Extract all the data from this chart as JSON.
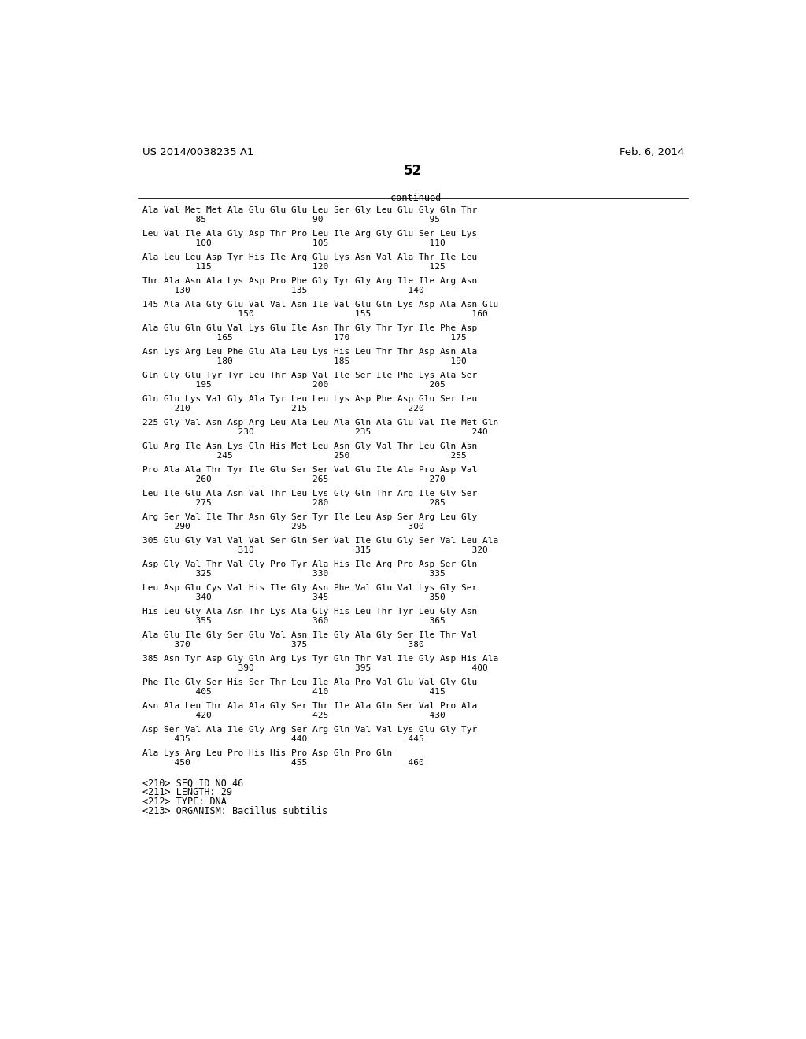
{
  "header_left": "US 2014/0038235 A1",
  "header_right": "Feb. 6, 2014",
  "page_number": "52",
  "continued_label": "-continued",
  "background_color": "#ffffff",
  "text_color": "#000000",
  "sequence_blocks": [
    {
      "seq": "Ala Val Met Met Ala Glu Glu Glu Leu Ser Gly Leu Glu Gly Gln Thr",
      "num": "          85                    90                    95",
      "prefix": ""
    },
    {
      "seq": "Leu Val Ile Ala Gly Asp Thr Pro Leu Ile Arg Gly Glu Ser Leu Lys",
      "num": "          100                   105                   110",
      "prefix": ""
    },
    {
      "seq": "Ala Leu Leu Asp Tyr His Ile Arg Glu Lys Asn Val Ala Thr Ile Leu",
      "num": "          115                   120                   125",
      "prefix": ""
    },
    {
      "seq": "Thr Ala Asn Ala Lys Asp Pro Phe Gly Tyr Gly Arg Ile Ile Arg Asn",
      "num": "      130                   135                   140",
      "prefix": ""
    },
    {
      "seq": "Ala Ala Gly Glu Val Val Asn Ile Val Glu Gln Lys Asp Ala Asn Glu",
      "num": "                  150                   155                   160",
      "prefix": "145"
    },
    {
      "seq": "Ala Glu Gln Glu Val Lys Glu Ile Asn Thr Gly Thr Tyr Ile Phe Asp",
      "num": "              165                   170                   175",
      "prefix": ""
    },
    {
      "seq": "Asn Lys Arg Leu Phe Glu Ala Leu Lys His Leu Thr Thr Asp Asn Ala",
      "num": "              180                   185                   190",
      "prefix": ""
    },
    {
      "seq": "Gln Gly Glu Tyr Tyr Leu Thr Asp Val Ile Ser Ile Phe Lys Ala Ser",
      "num": "          195                   200                   205",
      "prefix": ""
    },
    {
      "seq": "Gln Glu Lys Val Gly Ala Tyr Leu Leu Lys Asp Phe Asp Glu Ser Leu",
      "num": "      210                   215                   220",
      "prefix": ""
    },
    {
      "seq": "Gly Val Asn Asp Arg Leu Ala Leu Ala Gln Ala Glu Val Ile Met Gln",
      "num": "                  230                   235                   240",
      "prefix": "225"
    },
    {
      "seq": "Glu Arg Ile Asn Lys Gln His Met Leu Asn Gly Val Thr Leu Gln Asn",
      "num": "              245                   250                   255",
      "prefix": ""
    },
    {
      "seq": "Pro Ala Ala Thr Tyr Ile Glu Ser Ser Val Glu Ile Ala Pro Asp Val",
      "num": "          260                   265                   270",
      "prefix": ""
    },
    {
      "seq": "Leu Ile Glu Ala Asn Val Thr Leu Lys Gly Gln Thr Arg Ile Gly Ser",
      "num": "          275                   280                   285",
      "prefix": ""
    },
    {
      "seq": "Arg Ser Val Ile Thr Asn Gly Ser Tyr Ile Leu Asp Ser Arg Leu Gly",
      "num": "      290                   295                   300",
      "prefix": ""
    },
    {
      "seq": "Glu Gly Val Val Val Ser Gln Ser Val Ile Glu Gly Ser Val Leu Ala",
      "num": "                  310                   315                   320",
      "prefix": "305"
    },
    {
      "seq": "Asp Gly Val Thr Val Gly Pro Tyr Ala His Ile Arg Pro Asp Ser Gln",
      "num": "          325                   330                   335",
      "prefix": ""
    },
    {
      "seq": "Leu Asp Glu Cys Val His Ile Gly Asn Phe Val Glu Val Lys Gly Ser",
      "num": "          340                   345                   350",
      "prefix": ""
    },
    {
      "seq": "His Leu Gly Ala Asn Thr Lys Ala Gly His Leu Thr Tyr Leu Gly Asn",
      "num": "          355                   360                   365",
      "prefix": ""
    },
    {
      "seq": "Ala Glu Ile Gly Ser Glu Val Asn Ile Gly Ala Gly Ser Ile Thr Val",
      "num": "      370                   375                   380",
      "prefix": ""
    },
    {
      "seq": "Asn Tyr Asp Gly Gln Arg Lys Tyr Gln Thr Val Ile Gly Asp His Ala",
      "num": "                  390                   395                   400",
      "prefix": "385"
    },
    {
      "seq": "Phe Ile Gly Ser His Ser Thr Leu Ile Ala Pro Val Glu Val Gly Glu",
      "num": "          405                   410                   415",
      "prefix": ""
    },
    {
      "seq": "Asn Ala Leu Thr Ala Ala Gly Ser Thr Ile Ala Gln Ser Val Pro Ala",
      "num": "          420                   425                   430",
      "prefix": ""
    },
    {
      "seq": "Asp Ser Val Ala Ile Gly Arg Ser Arg Gln Val Val Lys Glu Gly Tyr",
      "num": "      435                   440                   445",
      "prefix": ""
    },
    {
      "seq": "Ala Lys Arg Leu Pro His His Pro Asp Gln Pro Gln",
      "num": "      450                   455                   460",
      "prefix": ""
    }
  ],
  "footer_lines": [
    "<210> SEQ ID NO 46",
    "<211> LENGTH: 29",
    "<212> TYPE: DNA",
    "<213> ORGANISM: Bacillus subtilis"
  ]
}
